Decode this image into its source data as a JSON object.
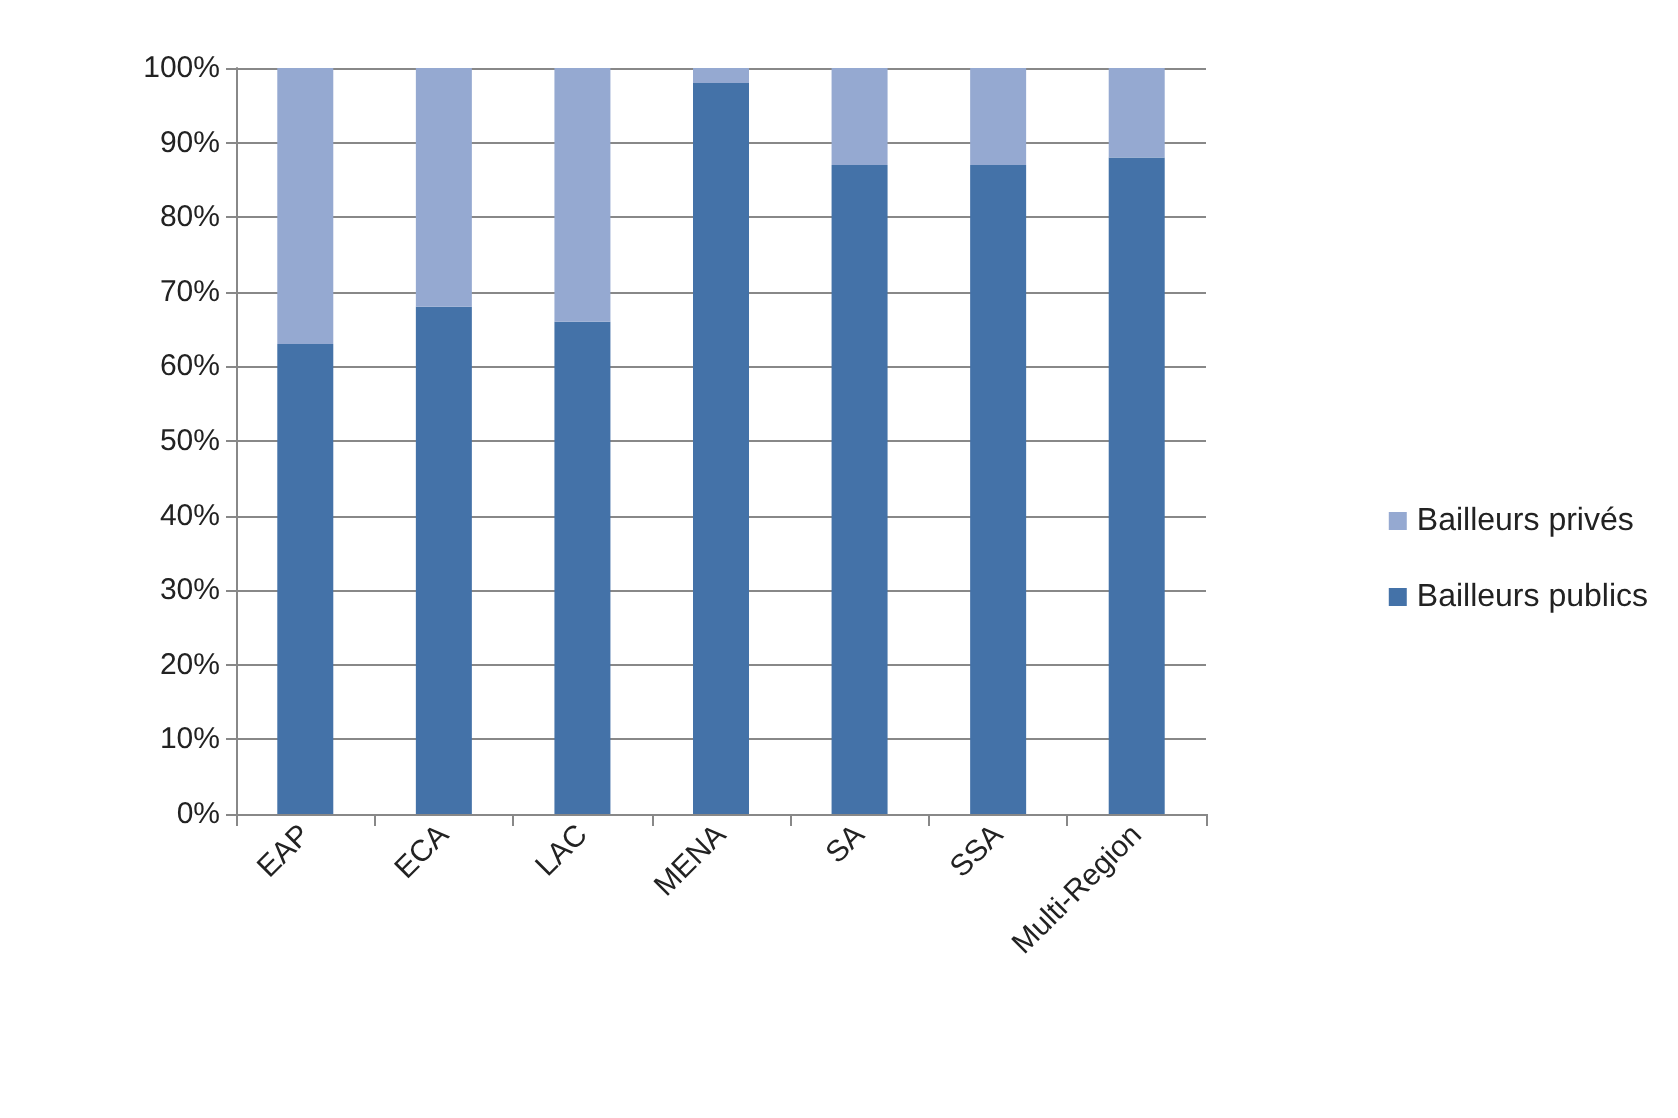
{
  "chart_data": {
    "type": "bar",
    "stacked": true,
    "categories": [
      "EAP",
      "ECA",
      "LAC",
      "MENA",
      "SA",
      "SSA",
      "Multi-Region"
    ],
    "series": [
      {
        "name": "Bailleurs publics",
        "color": "#4472a8",
        "values": [
          63,
          68,
          66,
          98,
          87,
          87,
          88
        ]
      },
      {
        "name": "Bailleurs privés",
        "color": "#95a9d1",
        "values": [
          37,
          32,
          34,
          2,
          13,
          13,
          12
        ]
      }
    ],
    "ylim": [
      0,
      100
    ],
    "yticks": [
      {
        "value": 0,
        "label": "0%"
      },
      {
        "value": 10,
        "label": "10%"
      },
      {
        "value": 20,
        "label": "20%"
      },
      {
        "value": 30,
        "label": "30%"
      },
      {
        "value": 40,
        "label": "40%"
      },
      {
        "value": 50,
        "label": "50%"
      },
      {
        "value": 60,
        "label": "60%"
      },
      {
        "value": 70,
        "label": "70%"
      },
      {
        "value": 80,
        "label": "80%"
      },
      {
        "value": 90,
        "label": "90%"
      },
      {
        "value": 100,
        "label": "100%"
      }
    ],
    "grid": "y",
    "legend": "right"
  }
}
